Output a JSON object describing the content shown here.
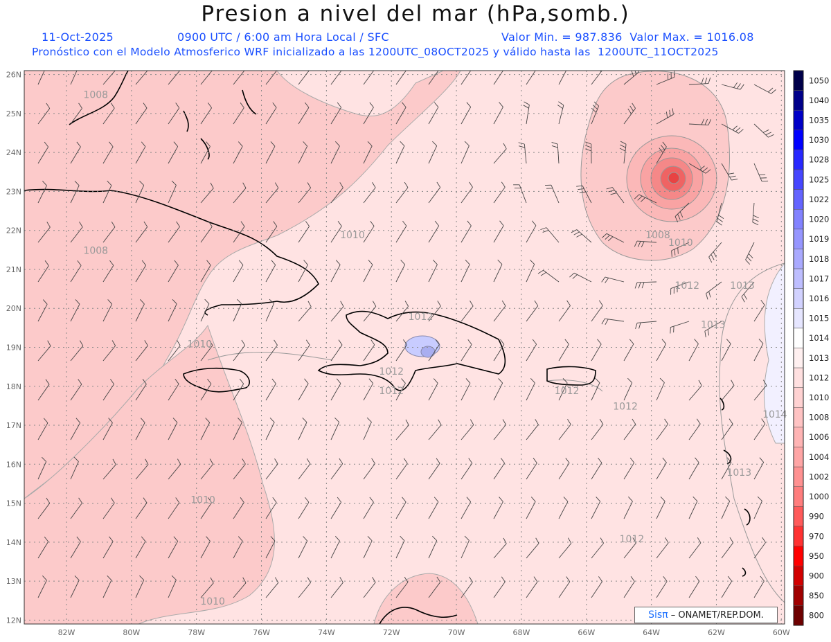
{
  "header": {
    "title": "Presion a nivel del mar (hPa,somb.)",
    "date": "11-Oct-2025",
    "time_line": "0900 UTC / 6:00 am Hora Local / SFC",
    "min_max": "Valor Min. = 987.836  Valor Max. = 1016.08",
    "model_line": "Pronóstico con el Modelo Atmosferico WRF inicializado a las 1200UTC_08OCT2025 y válido hasta las  1200UTC_11OCT2025"
  },
  "map": {
    "lon_labels": [
      "82W",
      "80W",
      "78W",
      "76W",
      "74W",
      "72W",
      "70W",
      "68W",
      "66W",
      "64W",
      "62W",
      "60W"
    ],
    "lat_labels": [
      "26N",
      "25N",
      "24N",
      "23N",
      "22N",
      "21N",
      "20N",
      "19N",
      "18N",
      "17N",
      "16N",
      "15N",
      "14N",
      "13N",
      "12N"
    ],
    "contour_labels": [
      {
        "text": "1008",
        "lon": -81.1,
        "lat": 25.4
      },
      {
        "text": "1008",
        "lon": -81.1,
        "lat": 21.4
      },
      {
        "text": "1010",
        "lon": -73.2,
        "lat": 21.8
      },
      {
        "text": "1010",
        "lon": -77.9,
        "lat": 19.0
      },
      {
        "text": "1012",
        "lon": -72.0,
        "lat": 18.3
      },
      {
        "text": "1012",
        "lon": -72.0,
        "lat": 17.8
      },
      {
        "text": "1012",
        "lon": -71.1,
        "lat": 19.7
      },
      {
        "text": "1012",
        "lon": -66.6,
        "lat": 17.8
      },
      {
        "text": "1012",
        "lon": -64.8,
        "lat": 17.4
      },
      {
        "text": "1012",
        "lon": -62.9,
        "lat": 20.5
      },
      {
        "text": "1012",
        "lon": -64.6,
        "lat": 14.0
      },
      {
        "text": "1008",
        "lon": -63.8,
        "lat": 21.8
      },
      {
        "text": "1010",
        "lon": -63.1,
        "lat": 21.6
      },
      {
        "text": "1013",
        "lon": -61.2,
        "lat": 20.5
      },
      {
        "text": "1013",
        "lon": -62.1,
        "lat": 19.5
      },
      {
        "text": "1013",
        "lon": -61.3,
        "lat": 15.7
      },
      {
        "text": "1014",
        "lon": -60.2,
        "lat": 17.2
      },
      {
        "text": "1010",
        "lon": -77.8,
        "lat": 15.0
      },
      {
        "text": "1010",
        "lon": -77.5,
        "lat": 12.4
      }
    ],
    "low_center": {
      "lon": -63.3,
      "lat": 23.3,
      "value": "987.836"
    }
  },
  "legend": {
    "levels": [
      "1050",
      "1040",
      "1035",
      "1030",
      "1028",
      "1025",
      "1022",
      "1020",
      "1019",
      "1018",
      "1017",
      "1016",
      "1015",
      "1014",
      "1013",
      "1012",
      "1010",
      "1008",
      "1006",
      "1004",
      "1002",
      "1000",
      "990",
      "970",
      "950",
      "900",
      "850",
      "800"
    ],
    "colors": [
      "#00004a",
      "#00008a",
      "#0000c8",
      "#0000ff",
      "#2828ff",
      "#4646ff",
      "#6464ff",
      "#8282ff",
      "#9696ff",
      "#aaaaff",
      "#bebeff",
      "#d2d2ff",
      "#e6e6ff",
      "#ffffff",
      "#fff0f0",
      "#ffe0e0",
      "#ffd2d2",
      "#ffc3c3",
      "#ffb4b4",
      "#ffa5a5",
      "#ff9191",
      "#ff7d7d",
      "#ff5a5a",
      "#ff3232",
      "#ff0000",
      "#d20000",
      "#a00000",
      "#6e0000"
    ]
  },
  "credit": {
    "brand": "Sisπ",
    "text": "– ONAMET/REP.DOM."
  },
  "colors": {
    "sea_base": "#ffe3e3",
    "low_pressure": "#fccaca",
    "coast": "#000000",
    "contour": "#999999",
    "grid": "#888888",
    "label_blue": "#1a4fff"
  }
}
